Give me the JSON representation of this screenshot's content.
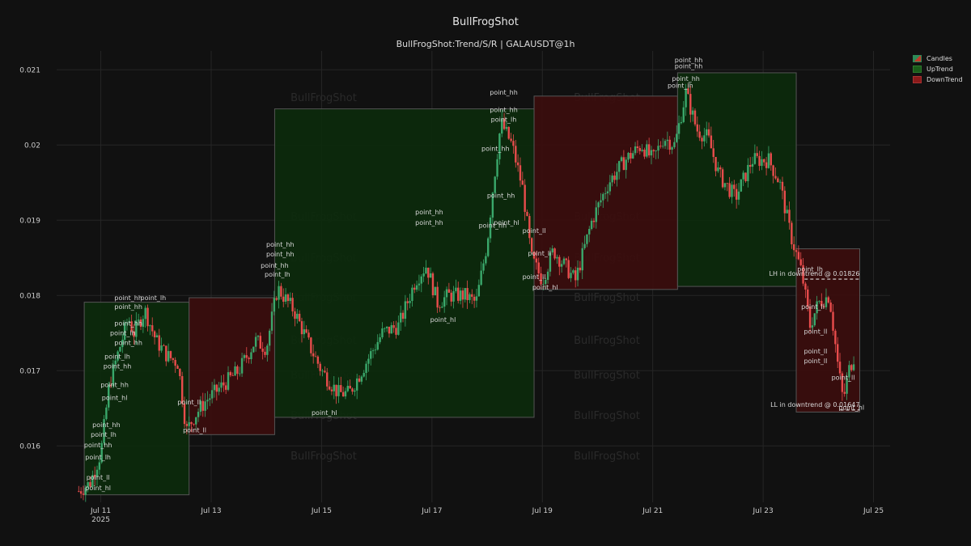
{
  "header": {
    "title": "BullFrogShot",
    "subtitle": "BullFrogShot:Trend/S/R | GALAUSDT@1h"
  },
  "watermark": "BullFrogShot",
  "legend": {
    "items": [
      {
        "label": "Candles",
        "color": "#2e8b57"
      },
      {
        "label": "UpTrend",
        "color": "#1a5c1a"
      },
      {
        "label": "DownTrend",
        "color": "#8b1a1a"
      }
    ]
  },
  "colors": {
    "up": "#3aa86b",
    "down": "#e84c4c",
    "uptrend_fill": "#0d2a0d",
    "downtrend_fill": "#3a0e0e"
  },
  "chart_data": {
    "type": "candlestick",
    "title": "BullFrogShot",
    "subtitle": "BullFrogShot:Trend/S/R | GALAUSDT@1h",
    "x_ticks": [
      {
        "day": 11,
        "label": "Jul 11",
        "sub": "2025"
      },
      {
        "day": 13,
        "label": "Jul 13",
        "sub": ""
      },
      {
        "day": 15,
        "label": "Jul 15",
        "sub": ""
      },
      {
        "day": 17,
        "label": "Jul 17",
        "sub": ""
      },
      {
        "day": 19,
        "label": "Jul 19",
        "sub": ""
      },
      {
        "day": 21,
        "label": "Jul 21",
        "sub": ""
      },
      {
        "day": 23,
        "label": "Jul 23",
        "sub": ""
      },
      {
        "day": 25,
        "label": "Jul 25",
        "sub": ""
      }
    ],
    "y_ticks": [
      0.016,
      0.017,
      0.018,
      0.019,
      0.02,
      0.021
    ],
    "xlim": [
      10.2,
      25.3
    ],
    "ylim": [
      0.01525,
      0.02125
    ],
    "path": [
      [
        10.6,
        0.0154
      ],
      [
        10.8,
        0.0155
      ],
      [
        11.0,
        0.0159
      ],
      [
        11.15,
        0.0168
      ],
      [
        11.3,
        0.0172
      ],
      [
        11.5,
        0.0177
      ],
      [
        11.6,
        0.0175
      ],
      [
        11.8,
        0.0178
      ],
      [
        12.0,
        0.0174
      ],
      [
        12.2,
        0.0172
      ],
      [
        12.4,
        0.0171
      ],
      [
        12.55,
        0.0162
      ],
      [
        12.7,
        0.0164
      ],
      [
        12.9,
        0.0166
      ],
      [
        13.2,
        0.0168
      ],
      [
        13.5,
        0.017
      ],
      [
        13.8,
        0.0174
      ],
      [
        14.0,
        0.0173
      ],
      [
        14.2,
        0.0181
      ],
      [
        14.5,
        0.0178
      ],
      [
        14.8,
        0.0173
      ],
      [
        15.0,
        0.017
      ],
      [
        15.3,
        0.0167
      ],
      [
        15.5,
        0.0167
      ],
      [
        15.8,
        0.0171
      ],
      [
        16.1,
        0.0175
      ],
      [
        16.4,
        0.0176
      ],
      [
        16.7,
        0.0182
      ],
      [
        16.9,
        0.0184
      ],
      [
        17.1,
        0.0179
      ],
      [
        17.3,
        0.018
      ],
      [
        17.6,
        0.018
      ],
      [
        17.8,
        0.0179
      ],
      [
        18.0,
        0.0187
      ],
      [
        18.1,
        0.0194
      ],
      [
        18.25,
        0.0203
      ],
      [
        18.45,
        0.02
      ],
      [
        18.65,
        0.0194
      ],
      [
        18.8,
        0.0185
      ],
      [
        19.0,
        0.0182
      ],
      [
        19.2,
        0.0186
      ],
      [
        19.4,
        0.0184
      ],
      [
        19.6,
        0.0182
      ],
      [
        19.9,
        0.019
      ],
      [
        20.2,
        0.0195
      ],
      [
        20.5,
        0.0198
      ],
      [
        20.8,
        0.02
      ],
      [
        21.0,
        0.0198
      ],
      [
        21.2,
        0.0201
      ],
      [
        21.4,
        0.02
      ],
      [
        21.6,
        0.0207
      ],
      [
        21.8,
        0.0202
      ],
      [
        22.0,
        0.0201
      ],
      [
        22.2,
        0.0196
      ],
      [
        22.5,
        0.0193
      ],
      [
        22.8,
        0.0198
      ],
      [
        23.1,
        0.0198
      ],
      [
        23.3,
        0.0195
      ],
      [
        23.5,
        0.0188
      ],
      [
        23.7,
        0.0183
      ],
      [
        23.85,
        0.0176
      ],
      [
        24.0,
        0.0179
      ],
      [
        24.2,
        0.018
      ],
      [
        24.35,
        0.0171
      ],
      [
        24.45,
        0.0166
      ],
      [
        24.55,
        0.017
      ],
      [
        24.65,
        0.0172
      ]
    ],
    "zones": [
      {
        "type": "up",
        "x0": 10.7,
        "x1": 12.6,
        "y0": 0.01535,
        "y1": 0.01791
      },
      {
        "type": "down",
        "x0": 12.6,
        "x1": 14.15,
        "y0": 0.01615,
        "y1": 0.01797
      },
      {
        "type": "up",
        "x0": 14.15,
        "x1": 18.85,
        "y0": 0.01638,
        "y1": 0.02048
      },
      {
        "type": "down",
        "x0": 18.85,
        "x1": 21.45,
        "y0": 0.01808,
        "y1": 0.02065
      },
      {
        "type": "up",
        "x0": 21.45,
        "x1": 23.6,
        "y0": 0.01812,
        "y1": 0.02096
      },
      {
        "type": "down",
        "x0": 23.6,
        "x1": 24.75,
        "y0": 0.01645,
        "y1": 0.01862
      }
    ],
    "point_labels": [
      {
        "text": "point_hh",
        "x": 10.95,
        "y": 0.01598
      },
      {
        "text": "point_lh",
        "x": 10.95,
        "y": 0.01582
      },
      {
        "text": "point_hh",
        "x": 11.1,
        "y": 0.01625
      },
      {
        "text": "point_lh",
        "x": 11.05,
        "y": 0.01612
      },
      {
        "text": "point_hl",
        "x": 11.25,
        "y": 0.01661
      },
      {
        "text": "point_hh",
        "x": 11.25,
        "y": 0.01678
      },
      {
        "text": "point_hh",
        "x": 11.3,
        "y": 0.01703
      },
      {
        "text": "point_lh",
        "x": 11.3,
        "y": 0.01716
      },
      {
        "text": "point_hh",
        "x": 11.5,
        "y": 0.01734
      },
      {
        "text": "point_lh",
        "x": 11.4,
        "y": 0.01747
      },
      {
        "text": "point_hh",
        "x": 11.5,
        "y": 0.0176
      },
      {
        "text": "point_hh",
        "x": 11.5,
        "y": 0.01782
      },
      {
        "text": "point_hh",
        "x": 11.5,
        "y": 0.01794
      },
      {
        "text": "point_lh",
        "x": 11.95,
        "y": 0.01794
      },
      {
        "text": "point_ll",
        "x": 10.95,
        "y": 0.01555
      },
      {
        "text": "point_hl",
        "x": 10.95,
        "y": 0.01541
      },
      {
        "text": "point_ll",
        "x": 12.6,
        "y": 0.01655
      },
      {
        "text": "point_ll",
        "x": 12.7,
        "y": 0.01618
      },
      {
        "text": "point_hh",
        "x": 14.15,
        "y": 0.01837
      },
      {
        "text": "point_hh",
        "x": 14.25,
        "y": 0.01852
      },
      {
        "text": "point_hh",
        "x": 14.25,
        "y": 0.01865
      },
      {
        "text": "point_lh",
        "x": 14.2,
        "y": 0.01825
      },
      {
        "text": "point_hl",
        "x": 15.05,
        "y": 0.01641
      },
      {
        "text": "point_hh",
        "x": 16.95,
        "y": 0.01894
      },
      {
        "text": "point_hh",
        "x": 16.95,
        "y": 0.01908
      },
      {
        "text": "point_hl",
        "x": 17.2,
        "y": 0.01765
      },
      {
        "text": "point_hh",
        "x": 18.1,
        "y": 0.0189
      },
      {
        "text": "point_hh",
        "x": 18.25,
        "y": 0.0193
      },
      {
        "text": "point_hl",
        "x": 18.35,
        "y": 0.01894
      },
      {
        "text": "point_hh",
        "x": 18.15,
        "y": 0.01992
      },
      {
        "text": "point_hh",
        "x": 18.3,
        "y": 0.02044
      },
      {
        "text": "point_lh",
        "x": 18.3,
        "y": 0.02031
      },
      {
        "text": "point_hh",
        "x": 18.3,
        "y": 0.02067
      },
      {
        "text": "point_ll",
        "x": 18.85,
        "y": 0.01883
      },
      {
        "text": "point_ll",
        "x": 18.95,
        "y": 0.01853
      },
      {
        "text": "point_ll",
        "x": 18.85,
        "y": 0.01822
      },
      {
        "text": "point_hl",
        "x": 19.05,
        "y": 0.01808
      },
      {
        "text": "point_lh",
        "x": 21.5,
        "y": 0.02076
      },
      {
        "text": "point_hh",
        "x": 21.6,
        "y": 0.02085
      },
      {
        "text": "point_hh",
        "x": 21.65,
        "y": 0.02102
      },
      {
        "text": "point_hh",
        "x": 21.65,
        "y": 0.0211
      },
      {
        "text": "point_lh",
        "x": 23.85,
        "y": 0.01832
      },
      {
        "text": "point_ll",
        "x": 23.9,
        "y": 0.01782
      },
      {
        "text": "point_ll",
        "x": 23.95,
        "y": 0.01749
      },
      {
        "text": "point_ll",
        "x": 23.95,
        "y": 0.0171
      },
      {
        "text": "point_ll",
        "x": 23.95,
        "y": 0.01723
      },
      {
        "text": "point_ll",
        "x": 24.45,
        "y": 0.01688
      },
      {
        "text": "point_hl",
        "x": 24.6,
        "y": 0.01648
      }
    ],
    "annotations": [
      {
        "text": "LH in downtrend @ 0.01826",
        "x": 24.75,
        "y": 0.01826,
        "line_x0": 23.75,
        "line_x1": 24.75
      },
      {
        "text": "LL in downtrend @ 0.01647",
        "x": 24.75,
        "y": 0.01652,
        "line_x0": 24.4,
        "line_x1": 24.75
      }
    ]
  }
}
